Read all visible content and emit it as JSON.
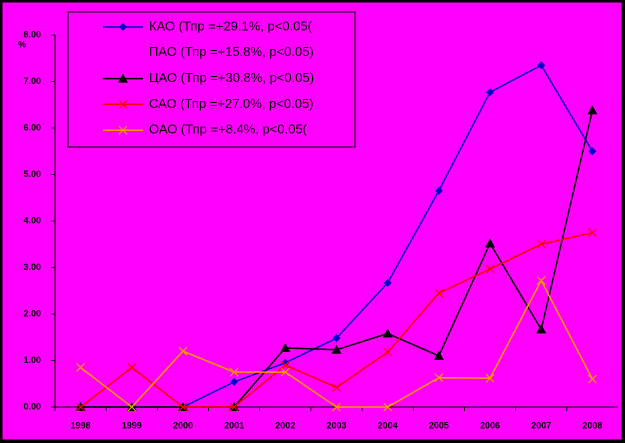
{
  "chart_data": {
    "type": "line",
    "y_label": "%",
    "categories": [
      "1998",
      "1999",
      "2000",
      "2001",
      "2002",
      "2003",
      "2004",
      "2005",
      "2006",
      "2007",
      "2008"
    ],
    "series": [
      {
        "name": "КАО (Тпр =+29.1%, p<0.05(",
        "color": "#0000cc",
        "marker": "diamond",
        "values": [
          0,
          0,
          0,
          0.54,
          0.95,
          1.48,
          2.67,
          4.65,
          6.77,
          7.35,
          5.5
        ]
      },
      {
        "name": "ПАО (Тпр =+15.8%, p<0.05)",
        "color": "#ff00ff",
        "marker": "none",
        "values": [
          null,
          null,
          null,
          null,
          null,
          null,
          null,
          null,
          null,
          null,
          null
        ]
      },
      {
        "name": "ЦАО (Тпр =+30.8%, p<0.05)",
        "color": "#000000",
        "marker": "triangle",
        "values": [
          0,
          0,
          0,
          0,
          1.27,
          1.23,
          1.58,
          1.1,
          3.52,
          1.67,
          6.38
        ]
      },
      {
        "name": "САО (Тпр =+27.0%, p<0.05)",
        "color": "#ff0000",
        "marker": "x",
        "values": [
          0,
          0.85,
          0,
          0,
          0.9,
          0.42,
          1.18,
          2.45,
          2.97,
          3.5,
          3.75
        ]
      },
      {
        "name": "ОАО (Тпр =+8.4%, p<0.05(",
        "color": "#ff9900",
        "marker": "x",
        "values": [
          0.85,
          0,
          1.2,
          0.75,
          0.75,
          0,
          0,
          0.63,
          0.62,
          2.72,
          0.6
        ]
      }
    ],
    "ylim": [
      0,
      8
    ],
    "yticks": [
      {
        "value": 0,
        "label": "0.00"
      },
      {
        "value": 1,
        "label": "1.00"
      },
      {
        "value": 2,
        "label": "2.00"
      },
      {
        "value": 3,
        "label": "3.00"
      },
      {
        "value": 4,
        "label": "4.00"
      },
      {
        "value": 5,
        "label": "5.00"
      },
      {
        "value": 6,
        "label": "6.00"
      },
      {
        "value": 7,
        "label": "7.00"
      },
      {
        "value": 8,
        "label": "8.00"
      }
    ],
    "grid": false,
    "legend": "top-left"
  }
}
